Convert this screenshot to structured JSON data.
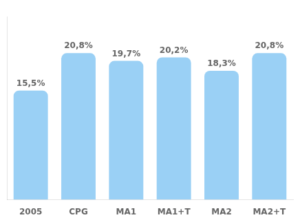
{
  "chart_data": {
    "type": "bar",
    "categories": [
      "2005",
      "CPG",
      "MA1",
      "MA1+T",
      "MA2",
      "MA2+T"
    ],
    "values": [
      15.5,
      20.8,
      19.7,
      20.2,
      18.3,
      20.8
    ],
    "value_labels": [
      "15,5%",
      "20,8%",
      "19,7%",
      "20,2%",
      "18,3%",
      "20,8%"
    ],
    "ylim": [
      0,
      26
    ],
    "grid": false,
    "data_labels": true,
    "tick_labels": "x"
  }
}
